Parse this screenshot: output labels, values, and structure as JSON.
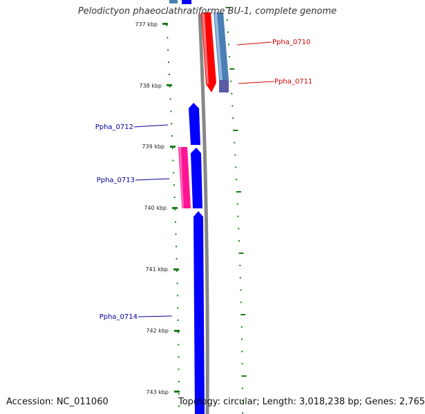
{
  "title": "Pelodictyon phaeoclathratiforme BU-1, complete genome",
  "footer": {
    "accession": "Accession: NC_011060",
    "summary": "Topology: circular; Length: 3,018,238 bp; Genes: 2,765"
  },
  "colors": {
    "tick": "#1a7a1a",
    "backbone": "#888888",
    "label_red": "#cc0000",
    "label_blue": "#000099"
  },
  "ticks": [
    "737 kbp",
    "738 kbp",
    "739 kbp",
    "740 kbp",
    "741 kbp",
    "742 kbp",
    "743 kbp"
  ],
  "genes": [
    {
      "label": "Ppha_0710",
      "color": "#ff0000",
      "label_color": "#cc0000"
    },
    {
      "label": "Ppha_0711",
      "color": "#4a7fb5",
      "label_color": "#cc0000"
    },
    {
      "label": "Ppha_0712",
      "color": "#0000ff",
      "label_color": "#000099"
    },
    {
      "label": "Ppha_0713",
      "color": "#ff1493",
      "label_color": "#000099"
    },
    {
      "label": "Ppha_0714",
      "color": "#0000ff",
      "label_color": "#000099"
    }
  ]
}
